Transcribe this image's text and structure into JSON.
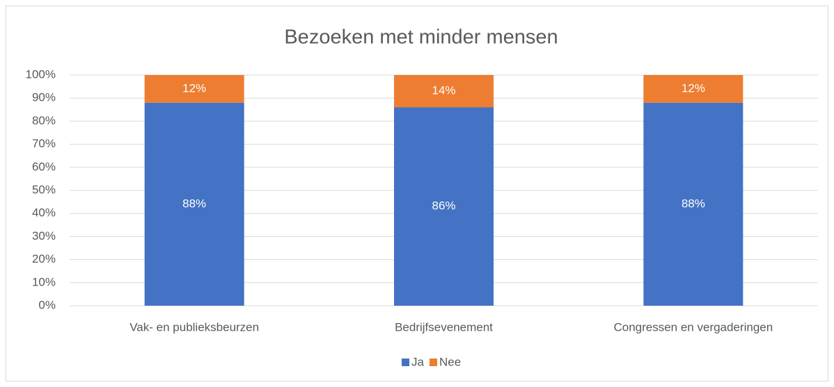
{
  "chart_data": {
    "type": "stacked_bar",
    "title": "Bezoeken met minder mensen",
    "categories": [
      "Vak- en publieksbeurzen",
      "Bedrijfsevenement",
      "Congressen en vergaderingen"
    ],
    "series": [
      {
        "name": "Ja",
        "color": "#4472c4",
        "values": [
          88,
          86,
          88
        ],
        "value_labels": [
          "88%",
          "86%",
          "88%"
        ]
      },
      {
        "name": "Nee",
        "color": "#ed7d31",
        "values": [
          12,
          14,
          12
        ],
        "value_labels": [
          "12%",
          "14%",
          "12%"
        ]
      }
    ],
    "ylim": [
      0,
      100
    ],
    "yticks": [
      {
        "value": 0,
        "label": "0%"
      },
      {
        "value": 10,
        "label": "10%"
      },
      {
        "value": 20,
        "label": "20%"
      },
      {
        "value": 30,
        "label": "30%"
      },
      {
        "value": 40,
        "label": "40%"
      },
      {
        "value": 50,
        "label": "50%"
      },
      {
        "value": 60,
        "label": "60%"
      },
      {
        "value": 70,
        "label": "70%"
      },
      {
        "value": 80,
        "label": "80%"
      },
      {
        "value": 90,
        "label": "90%"
      },
      {
        "value": 100,
        "label": "100%"
      }
    ],
    "grid": true,
    "legend": "bottom"
  }
}
